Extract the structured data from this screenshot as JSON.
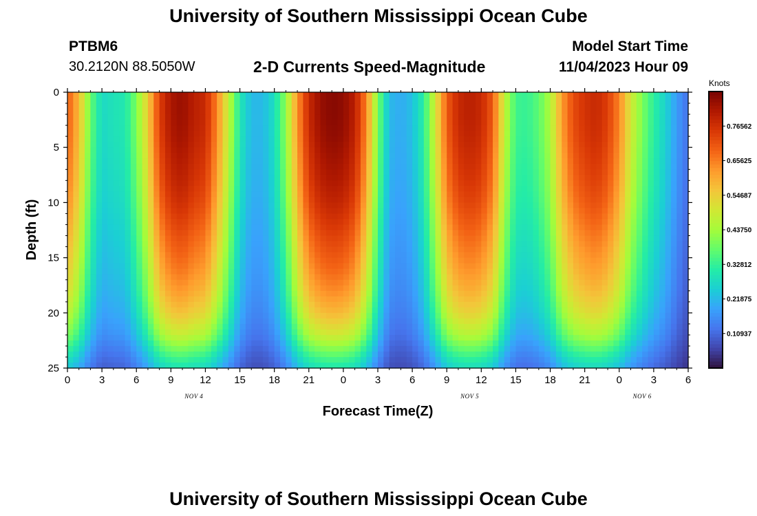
{
  "header": {
    "title": "University of Southern Mississippi Ocean Cube",
    "station": "PTBM6",
    "coords": "30.2120N  88.5050W",
    "subtitle": "2-D Currents Speed-Magnitude",
    "model_label": "Model Start Time",
    "model_time": "11/04/2023 Hour 09"
  },
  "footer": {
    "title": "University of Southern Mississippi Ocean Cube"
  },
  "colors": {
    "colormap": [
      "#30123b",
      "#4145ab",
      "#4675ed",
      "#39a2fc",
      "#1bcfd4",
      "#24eca6",
      "#61fc6c",
      "#a4fc3b",
      "#d1e834",
      "#f3c63a",
      "#fe9b2d",
      "#f36315",
      "#d93806",
      "#b11901",
      "#7a0402"
    ]
  },
  "chart_data": {
    "type": "heatmap",
    "title": "2-D Currents Speed-Magnitude",
    "xlabel": "Forecast Time(Z)",
    "ylabel": "Depth (ft)",
    "x_hours": [
      0,
      3,
      6,
      9,
      12,
      15,
      18,
      21,
      24,
      27,
      30,
      33,
      36,
      39,
      42,
      45,
      48,
      51,
      54
    ],
    "x_tick_labels": [
      "0",
      "3",
      "6",
      "9",
      "12",
      "15",
      "18",
      "21",
      "0",
      "3",
      "6",
      "9",
      "12",
      "15",
      "18",
      "21",
      "0",
      "3",
      "6"
    ],
    "date_labels": [
      {
        "hour": 11,
        "text": "NOV 4"
      },
      {
        "hour": 35,
        "text": "NOV 5"
      },
      {
        "hour": 50,
        "text": "NOV 6"
      }
    ],
    "xlim": [
      0,
      54
    ],
    "ylim": [
      0,
      25
    ],
    "y_ticks": [
      0,
      5,
      10,
      15,
      20,
      25
    ],
    "colorbar": {
      "unit": "Knots",
      "range": [
        0,
        0.875
      ],
      "ticks": [
        0.10937,
        0.21875,
        0.32812,
        0.4375,
        0.54687,
        0.65625,
        0.76562
      ],
      "tick_labels": [
        "0.10937",
        "0.21875",
        "0.32812",
        "0.43750",
        "0.54687",
        "0.65625",
        "0.76562"
      ]
    },
    "surface_speed_profile": {
      "hours": [
        0,
        1,
        2,
        3,
        4,
        5,
        6,
        7,
        8,
        9,
        10,
        11,
        12,
        13,
        14,
        15,
        16,
        17,
        18,
        19,
        20,
        21,
        22,
        23,
        24,
        25,
        26,
        27,
        28,
        29,
        30,
        31,
        32,
        33,
        34,
        35,
        36,
        37,
        38,
        39,
        40,
        41,
        42,
        43,
        44,
        45,
        46,
        47,
        48,
        49,
        50,
        51,
        52,
        53,
        54
      ],
      "values": [
        0.7,
        0.58,
        0.38,
        0.27,
        0.29,
        0.3,
        0.4,
        0.55,
        0.74,
        0.82,
        0.84,
        0.8,
        0.78,
        0.65,
        0.48,
        0.3,
        0.22,
        0.22,
        0.28,
        0.42,
        0.63,
        0.78,
        0.84,
        0.86,
        0.85,
        0.8,
        0.65,
        0.4,
        0.22,
        0.2,
        0.23,
        0.32,
        0.5,
        0.7,
        0.78,
        0.8,
        0.78,
        0.7,
        0.48,
        0.34,
        0.33,
        0.37,
        0.45,
        0.62,
        0.72,
        0.76,
        0.78,
        0.74,
        0.65,
        0.5,
        0.4,
        0.32,
        0.26,
        0.18,
        0.12
      ]
    },
    "depth_factor": {
      "depths": [
        0,
        2,
        4,
        6,
        8,
        10,
        12,
        14,
        16,
        18,
        20,
        22,
        23,
        24,
        25
      ],
      "values": [
        1.0,
        1.0,
        0.99,
        0.97,
        0.95,
        0.92,
        0.88,
        0.84,
        0.8,
        0.75,
        0.68,
        0.58,
        0.5,
        0.42,
        0.35
      ]
    }
  }
}
